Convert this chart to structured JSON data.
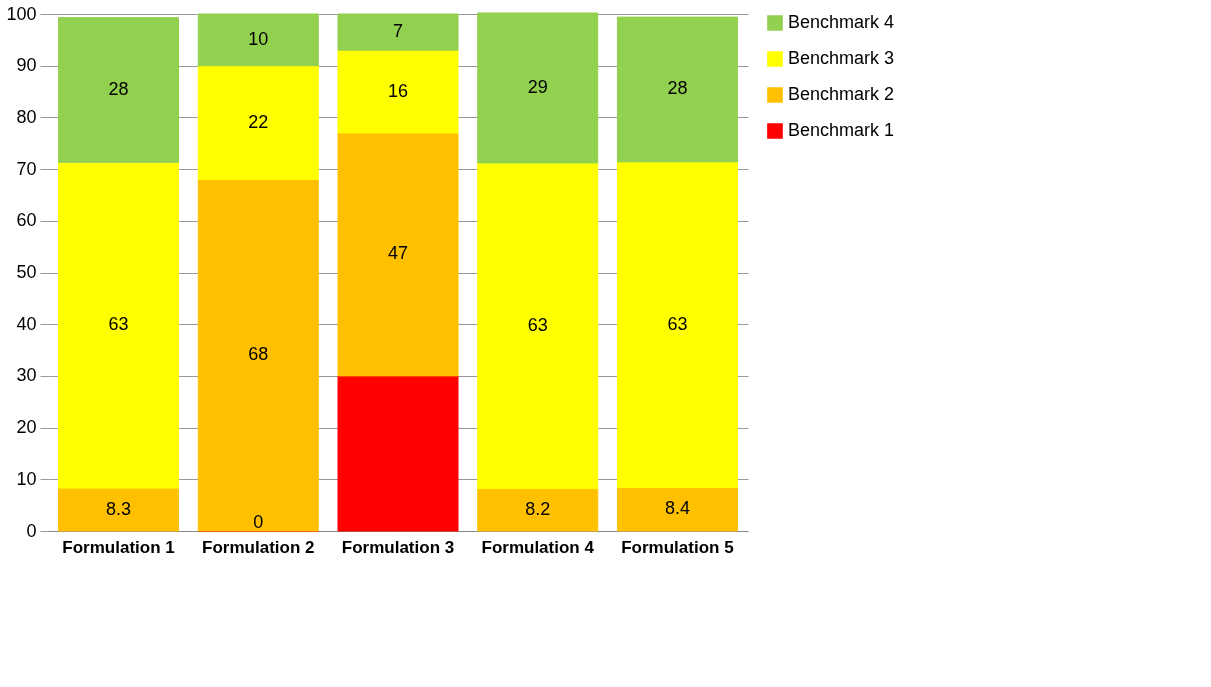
{
  "chart_data": {
    "type": "bar",
    "stacked": true,
    "categories": [
      "Formulation 1",
      "Formulation 2",
      "Formulation 3",
      "Formulation 4",
      "Formulation 5"
    ],
    "series": [
      {
        "name": "Benchmark 1",
        "color": "#ff0000",
        "values": [
          null,
          0,
          30,
          null,
          null
        ],
        "value_labels": [
          null,
          "0",
          null,
          null,
          null
        ]
      },
      {
        "name": "Benchmark 2",
        "color": "#ffc000",
        "values": [
          8.3,
          68,
          47,
          8.2,
          8.4
        ],
        "value_labels": [
          "8.3",
          "68",
          "47",
          "8.2",
          "8.4"
        ]
      },
      {
        "name": "Benchmark 3",
        "color": "#ffff00",
        "values": [
          63,
          22,
          16,
          63,
          63
        ],
        "value_labels": [
          "63",
          "22",
          "16",
          "63",
          "63"
        ]
      },
      {
        "name": "Benchmark 4",
        "color": "#92d050",
        "values": [
          28,
          10,
          7,
          29,
          28
        ],
        "value_labels": [
          "28",
          "10",
          "7",
          "29",
          "28"
        ]
      }
    ],
    "ylim": [
      0,
      100
    ],
    "yticks": [
      0,
      10,
      20,
      30,
      40,
      50,
      60,
      70,
      80,
      90,
      100
    ],
    "grid": "y",
    "legend": "right"
  }
}
